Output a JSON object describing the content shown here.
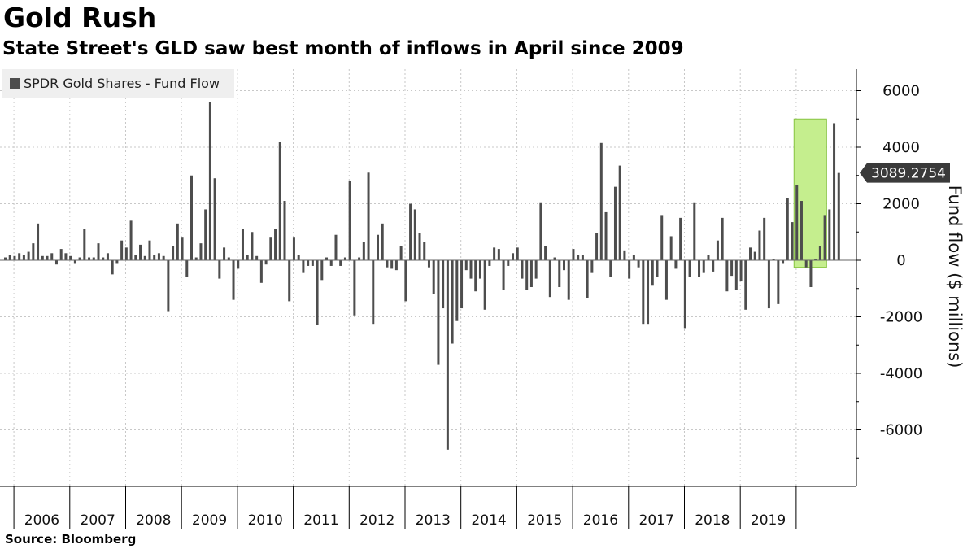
{
  "title": "Gold Rush",
  "subtitle": "State Street's GLD saw best month of inflows in April since 2009",
  "source": "Source:  Bloomberg",
  "colors": {
    "bar": "#4d4d4d",
    "highlight_fill": "#c5ee8e",
    "highlight_stroke": "#86c440",
    "grid": "#c8c8c8",
    "callout": "#3a3a3a"
  },
  "chart_data": {
    "type": "bar",
    "title": "Gold Rush",
    "subtitle": "State Street's GLD saw best month of inflows in April since 2009",
    "ylabel": "Fund flow ($ millions)",
    "xlabel": "",
    "legend": [
      "SPDR Gold Shares - Fund Flow"
    ],
    "legend_position": "top-left",
    "ylim": [
      -8300,
      6900
    ],
    "yticks": [
      6000,
      4000,
      2000,
      0,
      -2000,
      -4000,
      -6000
    ],
    "ytick_labels": [
      "6000",
      "4000",
      "2000",
      "0",
      "-2000",
      "-4000",
      "-6000"
    ],
    "x_start": "2005-11",
    "x_end_months": 174,
    "year_labels": [
      "2006",
      "2007",
      "2008",
      "2009",
      "2010",
      "2011",
      "2012",
      "2013",
      "2014",
      "2015",
      "2016",
      "2017",
      "2018",
      "2019"
    ],
    "callout_label": "3089.2754",
    "callout_value": 3089.2754,
    "highlight": {
      "from_month": 170,
      "to_month": 177,
      "ymin": -250,
      "ymax": 5000
    },
    "series": [
      {
        "name": "SPDR Gold Shares - Fund Flow",
        "values": [
          100,
          200,
          150,
          250,
          200,
          300,
          600,
          1300,
          150,
          150,
          250,
          -150,
          400,
          250,
          150,
          -100,
          100,
          1100,
          100,
          100,
          600,
          100,
          250,
          -500,
          -100,
          700,
          450,
          1400,
          200,
          550,
          150,
          700,
          200,
          250,
          150,
          -1800,
          500,
          1300,
          800,
          -600,
          3000,
          100,
          600,
          1800,
          5600,
          2900,
          -650,
          450,
          100,
          -1400,
          -300,
          1100,
          200,
          1000,
          150,
          -800,
          -150,
          800,
          1100,
          4200,
          2100,
          -1450,
          800,
          200,
          -450,
          -200,
          -200,
          -2300,
          -700,
          100,
          -200,
          900,
          -200,
          100,
          2800,
          -1950,
          100,
          650,
          3100,
          -2250,
          900,
          1300,
          -250,
          -300,
          -350,
          500,
          -1450,
          2000,
          1800,
          950,
          650,
          -250,
          -1200,
          -3700,
          -1700,
          -6700,
          -2950,
          -2150,
          -1700,
          -350,
          -650,
          -1100,
          -650,
          -1750,
          -200,
          450,
          400,
          -1050,
          -200,
          250,
          450,
          -650,
          -1050,
          -950,
          -650,
          2050,
          500,
          -1300,
          100,
          -950,
          -350,
          -1400,
          400,
          200,
          200,
          -1350,
          -450,
          950,
          4150,
          1700,
          -600,
          2600,
          3350,
          350,
          -650,
          200,
          -250,
          -2250,
          -2250,
          -900,
          -600,
          1600,
          -1400,
          850,
          -300,
          1500,
          -2400,
          -600,
          2050,
          -600,
          -450,
          200,
          -400,
          700,
          1500,
          -1100,
          -550,
          -1050,
          -750,
          -1750,
          450,
          300,
          1050,
          1500,
          -1700,
          50,
          -1550,
          -100,
          2200,
          1350,
          2650,
          2100,
          -250,
          -950,
          50,
          500,
          1600,
          1800,
          4850,
          3089.2754
        ]
      }
    ]
  }
}
